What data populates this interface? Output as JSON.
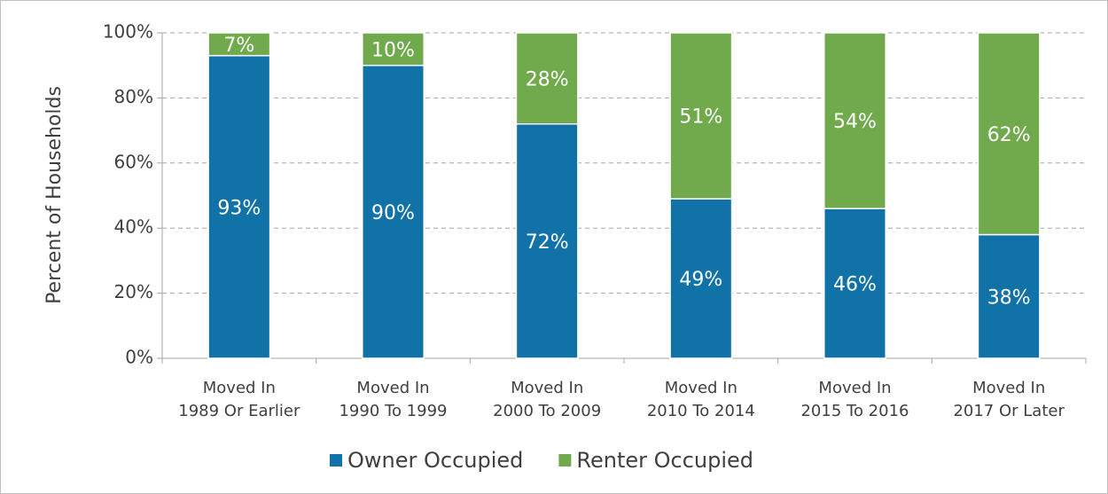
{
  "chart_data": {
    "type": "stacked_bar",
    "y_axis_label": "Percent of Households",
    "categories": [
      "Moved In\n1989 Or Earlier",
      "Moved In\n1990 To 1999",
      "Moved In\n2000 To 2009",
      "Moved In\n2010 To 2014",
      "Moved In\n2015 To 2016",
      "Moved In\n2017 Or Later"
    ],
    "series": [
      {
        "name": "Owner Occupied",
        "color": "#1172a8",
        "values": [
          93,
          90,
          72,
          49,
          46,
          38
        ],
        "value_labels": [
          "93%",
          "90%",
          "72%",
          "49%",
          "46%",
          "38%"
        ]
      },
      {
        "name": "Renter Occupied",
        "color": "#71a94d",
        "values": [
          7,
          10,
          28,
          51,
          54,
          62
        ],
        "value_labels": [
          "7%",
          "10%",
          "28%",
          "51%",
          "54%",
          "62%"
        ]
      }
    ],
    "ylim": [
      0,
      100
    ],
    "yticks": [
      {
        "value": 0,
        "label": "0%"
      },
      {
        "value": 20,
        "label": "20%"
      },
      {
        "value": 40,
        "label": "40%"
      },
      {
        "value": 60,
        "label": "60%"
      },
      {
        "value": 80,
        "label": "80%"
      },
      {
        "value": 100,
        "label": "100%"
      }
    ],
    "grid": true,
    "legend": "bottom"
  }
}
